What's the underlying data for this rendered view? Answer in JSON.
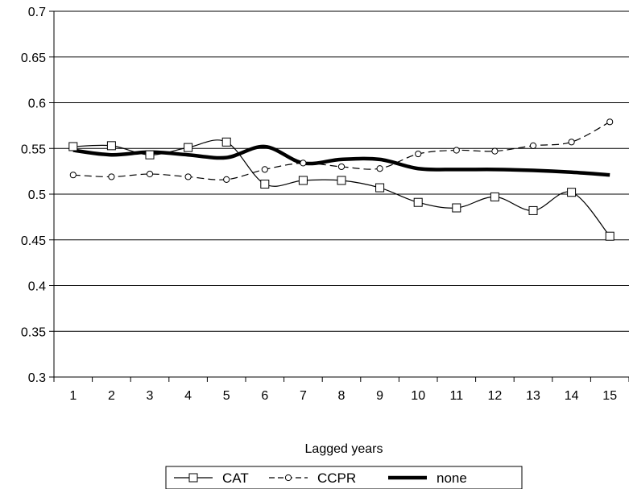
{
  "chart_data": {
    "type": "line",
    "title": "",
    "xlabel": "Lagged years",
    "ylabel": "",
    "categories": [
      "1",
      "2",
      "3",
      "4",
      "5",
      "6",
      "7",
      "8",
      "9",
      "10",
      "11",
      "12",
      "13",
      "14",
      "15"
    ],
    "ylim": [
      0.3,
      0.7
    ],
    "y_ticks": [
      "0.3",
      "0.35",
      "0.4",
      "0.45",
      "0.5",
      "0.55",
      "0.6",
      "0.65",
      "0.7"
    ],
    "grid": "horizontal",
    "legend_position": "bottom",
    "series": [
      {
        "name": "CAT",
        "marker": "square",
        "line_style": "thin-solid",
        "color": "#000000",
        "values": [
          0.552,
          0.553,
          0.543,
          0.551,
          0.557,
          0.511,
          0.515,
          0.515,
          0.507,
          0.491,
          0.485,
          0.497,
          0.482,
          0.502,
          0.454
        ]
      },
      {
        "name": "CCPR",
        "marker": "circle",
        "line_style": "dashed",
        "color": "#000000",
        "values": [
          0.521,
          0.519,
          0.522,
          0.519,
          0.516,
          0.527,
          0.534,
          0.53,
          0.528,
          0.544,
          0.548,
          0.547,
          0.553,
          0.557,
          0.579
        ]
      },
      {
        "name": "none",
        "marker": "none",
        "line_style": "thick-solid",
        "color": "#000000",
        "values": [
          0.548,
          0.543,
          0.546,
          0.543,
          0.54,
          0.552,
          0.534,
          0.538,
          0.538,
          0.528,
          0.527,
          0.527,
          0.526,
          0.524,
          0.521
        ]
      }
    ]
  }
}
